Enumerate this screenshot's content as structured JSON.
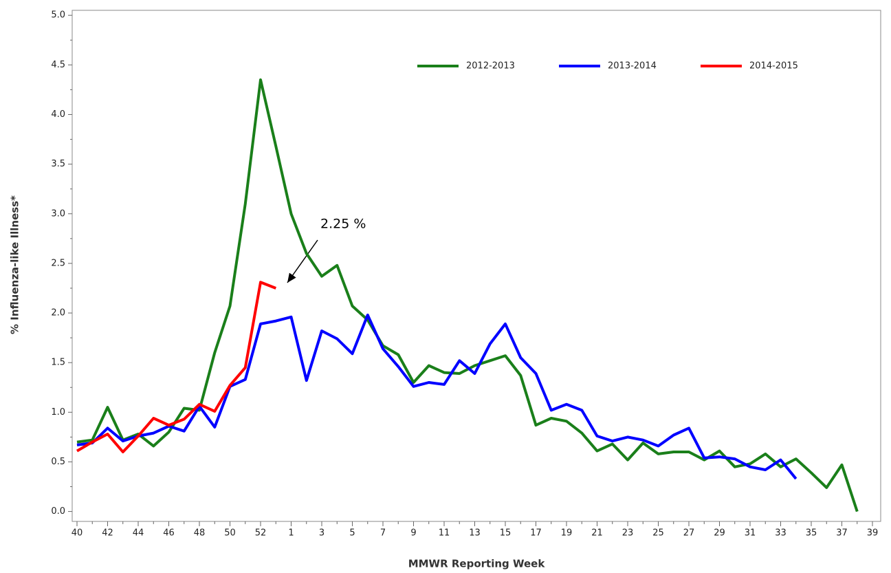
{
  "chart_data": {
    "type": "line",
    "x_label": "MMWR Reporting Week",
    "y_label": "% Influenza-like Illness*",
    "annotation": "2.25 %",
    "categories": [
      "40",
      null,
      "42",
      null,
      "44",
      null,
      "46",
      null,
      "48",
      null,
      "50",
      null,
      "52",
      null,
      "1",
      null,
      "3",
      null,
      "5",
      null,
      "7",
      null,
      "9",
      null,
      "11",
      null,
      "13",
      null,
      "15",
      null,
      "17",
      null,
      "19",
      null,
      "21",
      null,
      "23",
      null,
      "25",
      null,
      "27",
      null,
      "29",
      null,
      "31",
      null,
      "33",
      null,
      "35",
      null,
      "37",
      null,
      "39"
    ],
    "series": [
      {
        "name": "2012-2013",
        "color": "#1a7f1a",
        "values": [
          0.7,
          0.72,
          1.05,
          0.72,
          0.78,
          0.66,
          0.8,
          1.04,
          1.02,
          1.6,
          2.07,
          3.1,
          4.35,
          3.68,
          3.0,
          2.6,
          2.37,
          2.48,
          2.07,
          1.93,
          1.67,
          1.58,
          1.3,
          1.47,
          1.4,
          1.39,
          1.47,
          1.52,
          1.57,
          1.37,
          0.87,
          0.94,
          0.91,
          0.79,
          0.61,
          0.68,
          0.52,
          0.69,
          0.58,
          0.6,
          0.6,
          0.52,
          0.61,
          0.45,
          0.48,
          0.58,
          0.45,
          0.53,
          0.39,
          0.24,
          0.47,
          0.0,
          null
        ]
      },
      {
        "name": "2013-2014",
        "color": "#0000ff",
        "values": [
          0.67,
          0.69,
          0.84,
          0.71,
          0.76,
          0.79,
          0.86,
          0.81,
          1.06,
          0.85,
          1.26,
          1.33,
          1.89,
          1.92,
          1.96,
          1.32,
          1.82,
          1.74,
          1.59,
          1.98,
          1.64,
          1.46,
          1.26,
          1.3,
          1.28,
          1.52,
          1.39,
          1.69,
          1.89,
          1.55,
          1.39,
          1.02,
          1.08,
          1.02,
          0.76,
          0.71,
          0.75,
          0.72,
          0.66,
          0.77,
          0.84,
          0.54,
          0.55,
          0.53,
          0.45,
          0.42,
          0.52,
          0.33,
          null,
          null,
          null,
          null,
          null
        ]
      },
      {
        "name": "2014-2015",
        "color": "#ff0000",
        "values": [
          0.61,
          0.7,
          0.78,
          0.6,
          0.76,
          0.94,
          0.87,
          0.93,
          1.08,
          1.01,
          1.27,
          1.45,
          2.31,
          2.25,
          null,
          null,
          null,
          null,
          null,
          null,
          null,
          null,
          null,
          null,
          null,
          null,
          null,
          null,
          null,
          null,
          null,
          null,
          null,
          null,
          null,
          null,
          null,
          null,
          null,
          null,
          null,
          null,
          null,
          null,
          null,
          null,
          null,
          null,
          null,
          null,
          null,
          null,
          null
        ]
      }
    ],
    "ylim": [
      -0.1,
      5.05
    ],
    "yticks": [
      {
        "value": 0,
        "label": "0.0"
      },
      0.5,
      {
        "value": 1,
        "label": "1.0"
      },
      1.5,
      {
        "value": 2,
        "label": "2.0"
      },
      2.5,
      {
        "value": 3,
        "label": "3.0"
      },
      3.5,
      {
        "value": 4,
        "label": "4.0"
      },
      4.5,
      {
        "value": 5,
        "label": "5.0"
      }
    ],
    "grid": false
  }
}
